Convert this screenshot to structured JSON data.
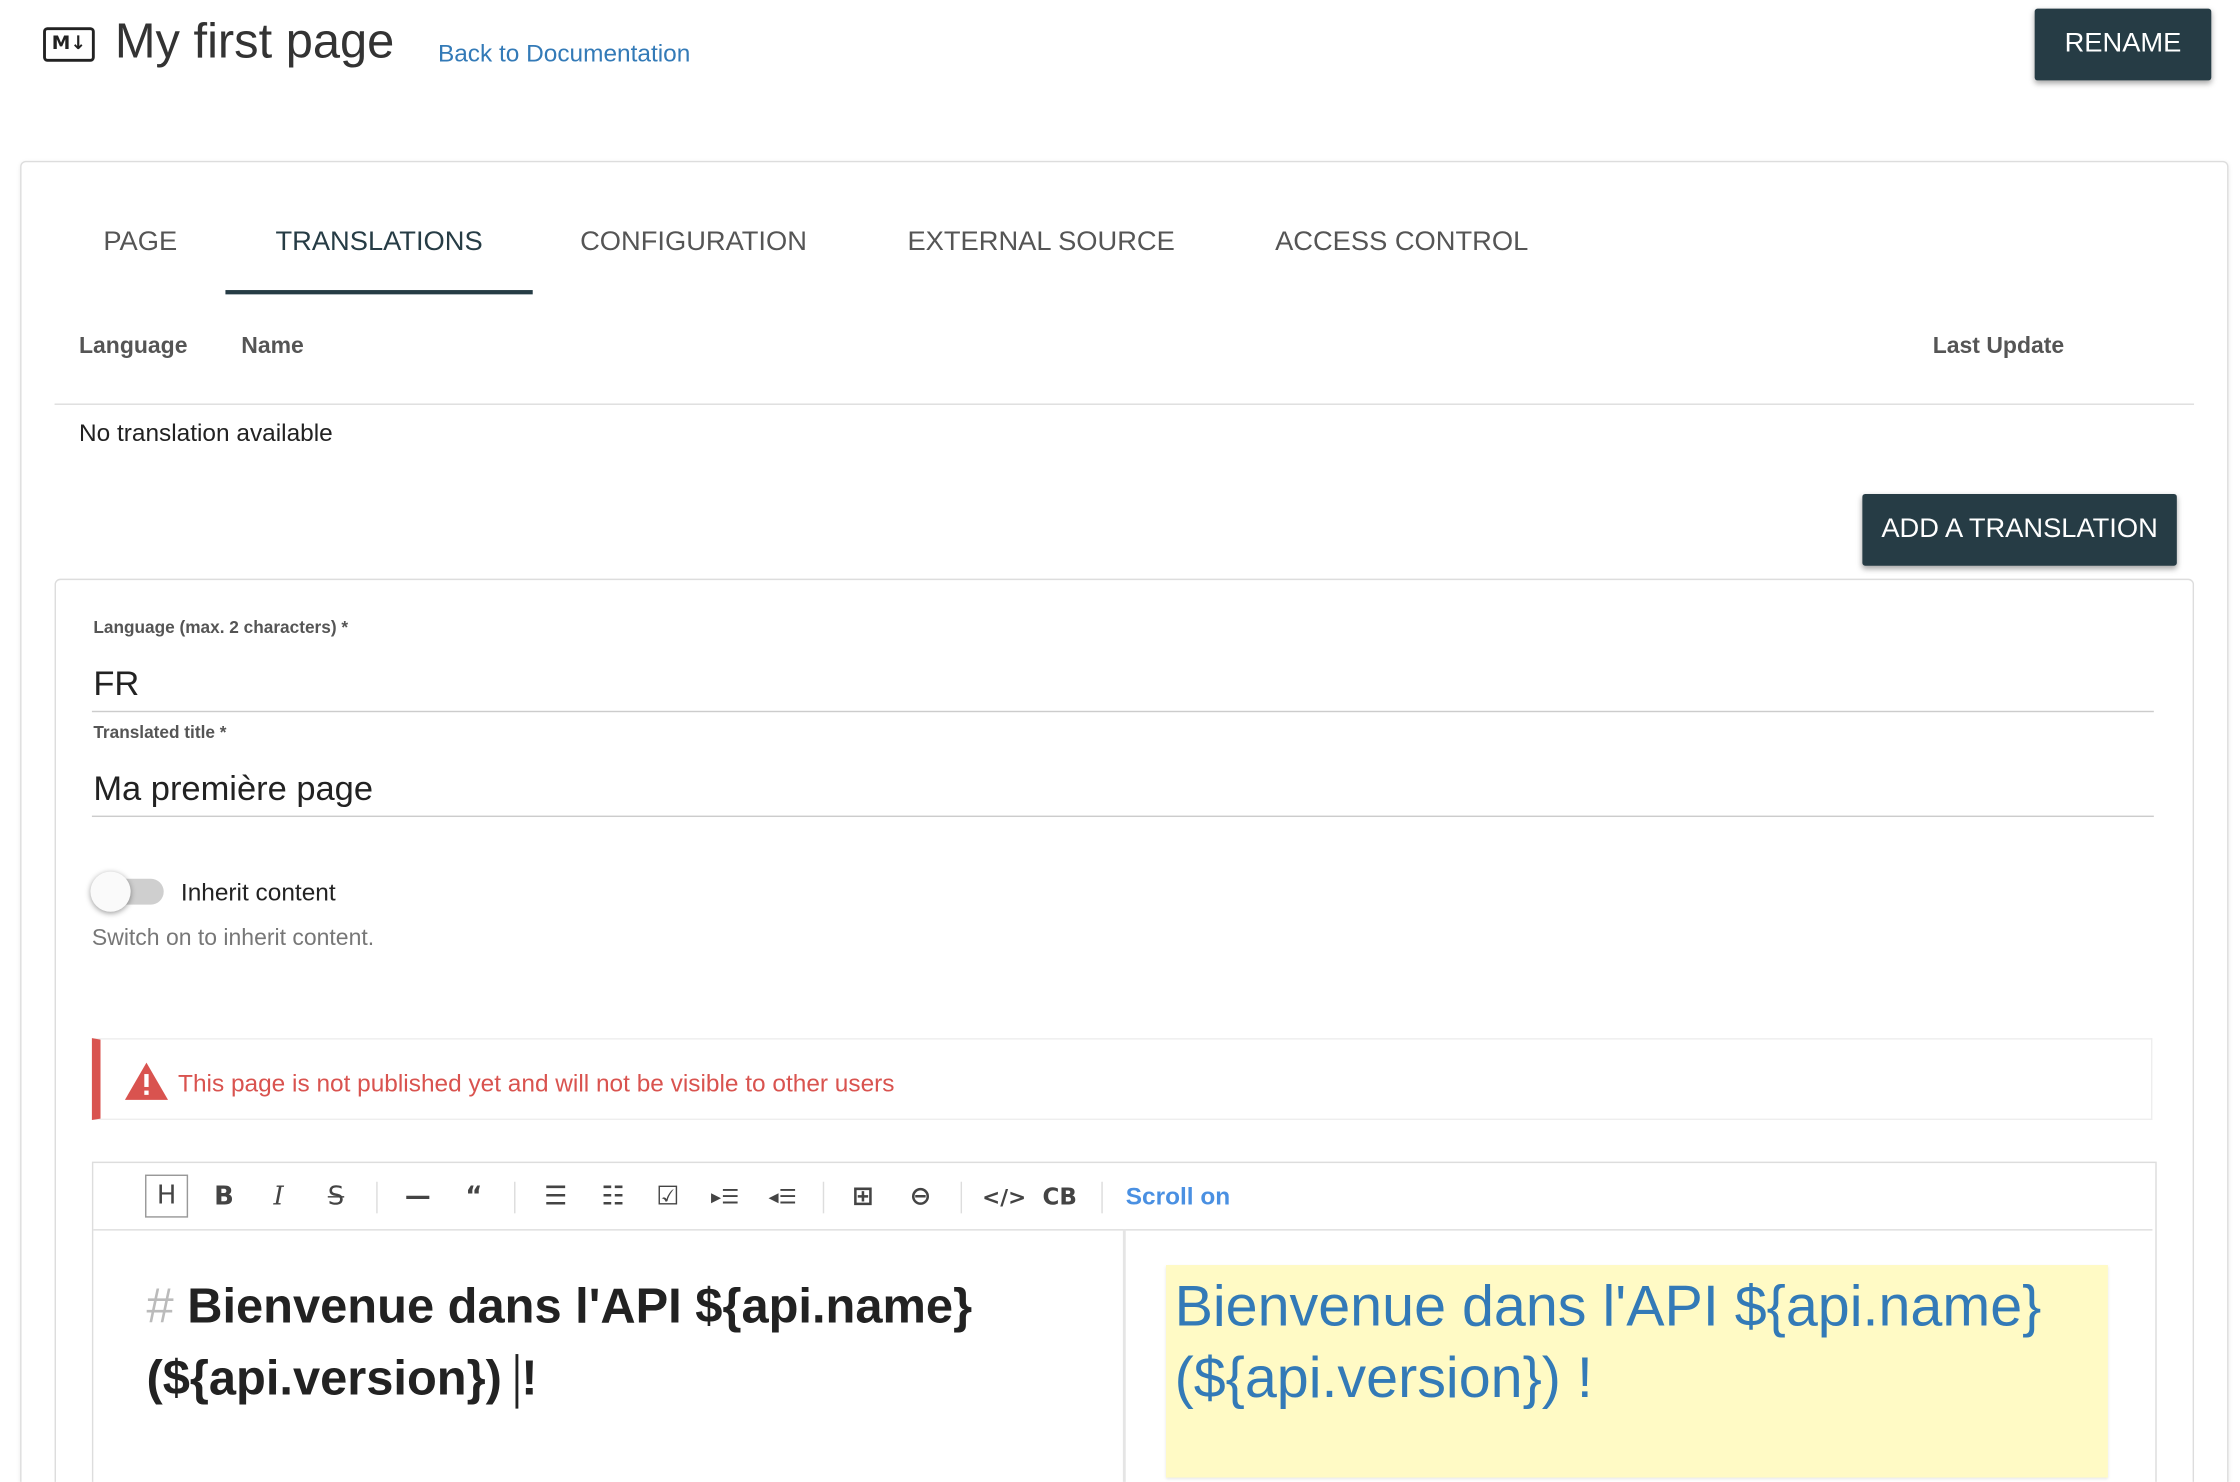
{
  "header": {
    "icon": "markdown-icon",
    "icon_text": "M↓",
    "title": "My first page",
    "back_link": "Back to Documentation",
    "rename_label": "RENAME"
  },
  "tabs": [
    {
      "label": "PAGE"
    },
    {
      "label": "TRANSLATIONS",
      "active": true
    },
    {
      "label": "CONFIGURATION"
    },
    {
      "label": "EXTERNAL SOURCE"
    },
    {
      "label": "ACCESS CONTROL"
    }
  ],
  "table": {
    "columns": [
      "Language",
      "Name",
      "Last Update"
    ],
    "empty_text": "No translation available",
    "add_label": "ADD A TRANSLATION"
  },
  "form": {
    "language_label": "Language (max. 2 characters) *",
    "language_value": "FR",
    "title_label": "Translated title *",
    "title_value": "Ma première page",
    "inherit_label": "Inherit content",
    "inherit_on": false,
    "inherit_help": "Switch on to inherit content.",
    "alert": "This page is not published yet and will not be visible to other users"
  },
  "editor": {
    "toolbar": [
      "heading",
      "bold",
      "italic",
      "strikethrough",
      "horizontal-rule",
      "quote",
      "bullet-list",
      "ordered-list",
      "task-list",
      "indent",
      "outdent",
      "table",
      "link",
      "code",
      "code-block"
    ],
    "scroll_label": "Scroll on",
    "source_hash": "#",
    "source_line1": "Bienvenue dans l'API ${api.name}",
    "source_line2": "(${api.version})",
    "source_tail": "!",
    "preview": "Bienvenue dans l'API ${api.name} (${api.version}) !"
  },
  "colors": {
    "primary": "#263c45",
    "link": "#337ab7",
    "danger": "#d9534f",
    "preview_bg": "#fffac5"
  }
}
